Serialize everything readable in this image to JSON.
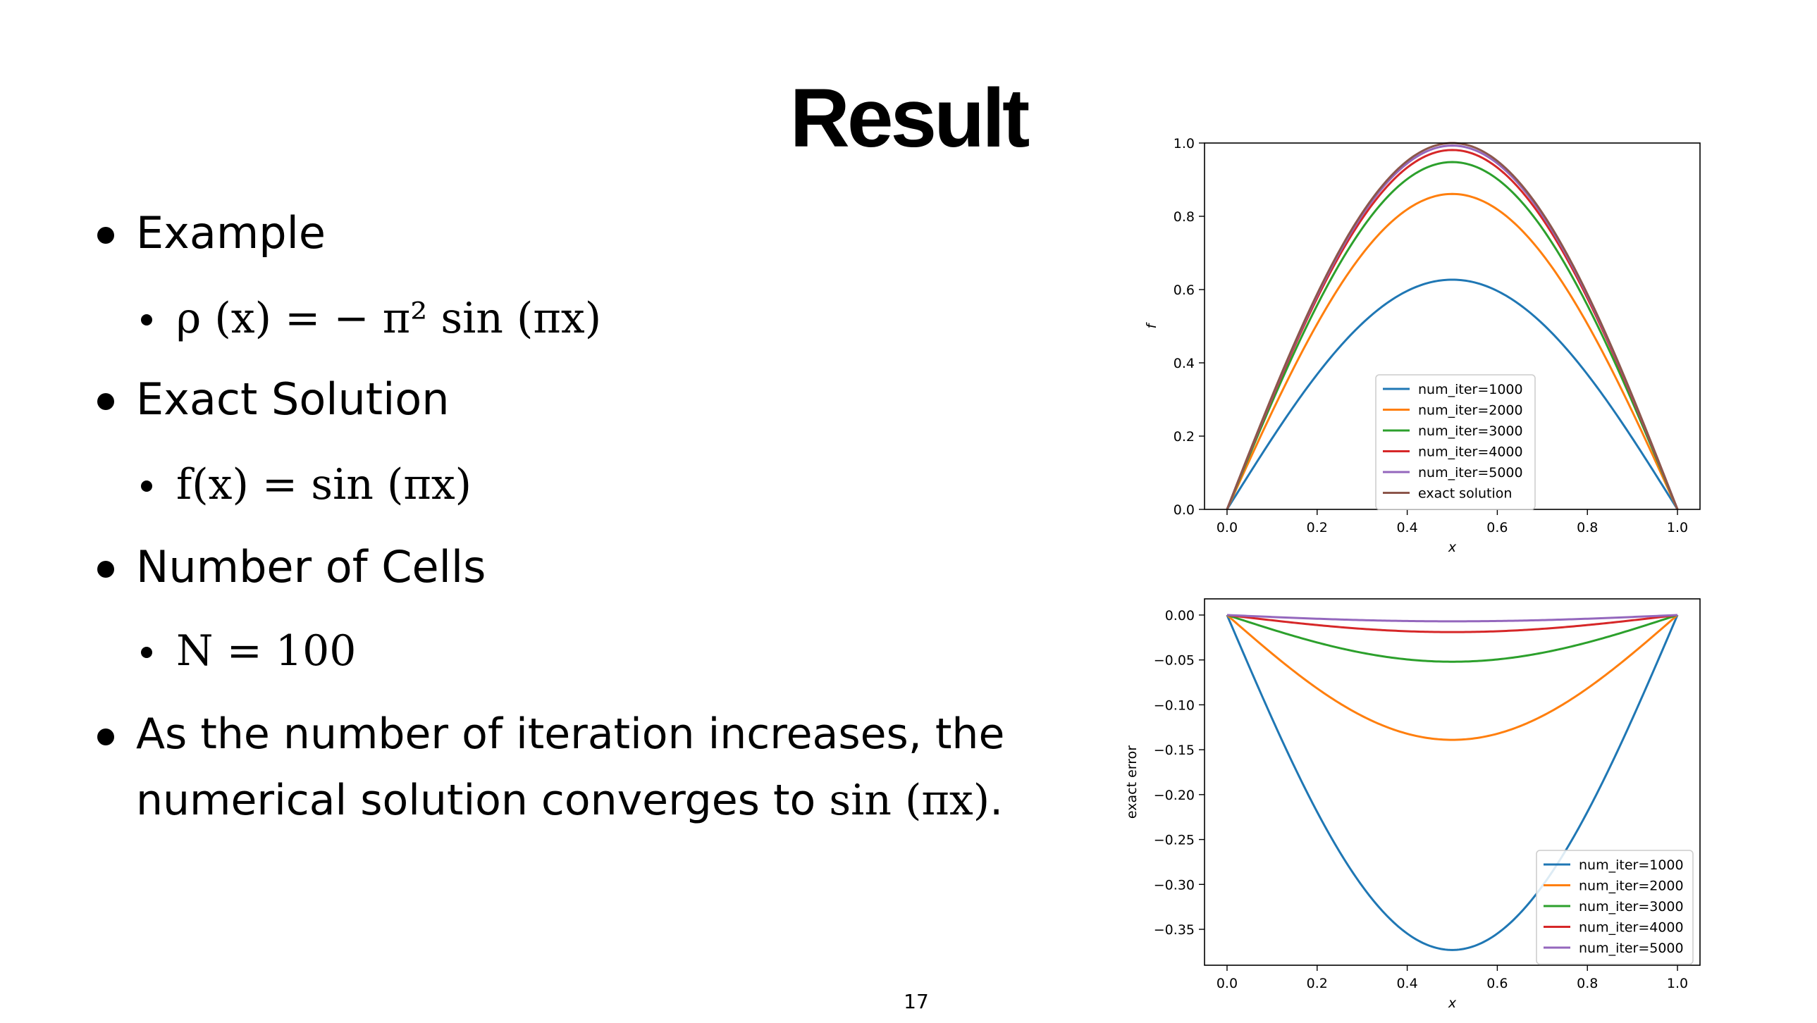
{
  "slide": {
    "title": "Result",
    "page_number": "17",
    "bullets": [
      {
        "text": "Example",
        "sub": "ρ (x) = − π² sin (πx)"
      },
      {
        "text": "Exact Solution",
        "sub": "f(x) = sin (πx)"
      },
      {
        "text": "Number of Cells",
        "sub": "N = 100"
      },
      {
        "line1": "As the number of iteration increases, the",
        "line2_prefix": "numerical solution converges to ",
        "line2_math": "sin (πx)",
        "line2_suffix": "."
      }
    ]
  },
  "chart_data": [
    {
      "type": "line",
      "xlabel": "x",
      "ylabel": "f",
      "xlim": [
        -0.05,
        1.05
      ],
      "ylim": [
        0,
        1.0
      ],
      "xticks": [
        "0.0",
        "0.2",
        "0.4",
        "0.6",
        "0.8",
        "1.0"
      ],
      "yticks": [
        "0.0",
        "0.2",
        "0.4",
        "0.6",
        "0.8",
        "1.0"
      ],
      "legend_position": "lower-center",
      "series": [
        {
          "name": "num_iter=1000",
          "color": "#1f77b4",
          "peak": 0.627,
          "shape": "sin(pi x)"
        },
        {
          "name": "num_iter=2000",
          "color": "#ff7f0e",
          "peak": 0.861,
          "shape": "sin(pi x)"
        },
        {
          "name": "num_iter=3000",
          "color": "#2ca02c",
          "peak": 0.948,
          "shape": "sin(pi x)"
        },
        {
          "name": "num_iter=4000",
          "color": "#d62728",
          "peak": 0.981,
          "shape": "sin(pi x)"
        },
        {
          "name": "num_iter=5000",
          "color": "#9467bd",
          "peak": 0.993,
          "shape": "sin(pi x)"
        },
        {
          "name": "exact solution",
          "color": "#8c564b",
          "peak": 1.0,
          "shape": "sin(pi x)"
        }
      ]
    },
    {
      "type": "line",
      "xlabel": "x",
      "ylabel": "exact error",
      "xlim": [
        -0.05,
        1.05
      ],
      "ylim": [
        -0.39,
        0.018
      ],
      "xticks": [
        "0.0",
        "0.2",
        "0.4",
        "0.6",
        "0.8",
        "1.0"
      ],
      "yticks": [
        "0.00",
        "−0.05",
        "−0.10",
        "−0.15",
        "−0.20",
        "−0.25",
        "−0.30",
        "−0.35"
      ],
      "legend_position": "lower-right",
      "series": [
        {
          "name": "num_iter=1000",
          "color": "#1f77b4",
          "min": -0.373,
          "shape": "sin(pi x)"
        },
        {
          "name": "num_iter=2000",
          "color": "#ff7f0e",
          "min": -0.139,
          "shape": "sin(pi x)"
        },
        {
          "name": "num_iter=3000",
          "color": "#2ca02c",
          "min": -0.052,
          "shape": "sin(pi x)"
        },
        {
          "name": "num_iter=4000",
          "color": "#d62728",
          "min": -0.019,
          "shape": "sin(pi x)"
        },
        {
          "name": "num_iter=5000",
          "color": "#9467bd",
          "min": -0.007,
          "shape": "sin(pi x)"
        }
      ]
    }
  ]
}
